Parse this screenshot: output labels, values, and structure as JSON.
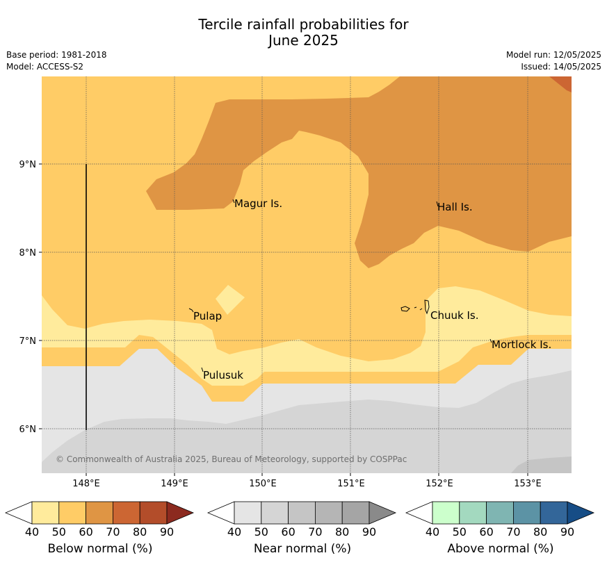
{
  "title": {
    "line1": "Tercile rainfall probabilities for",
    "line2": "June 2025"
  },
  "meta": {
    "base_period": "Base period: 1981-2018",
    "model": "Model: ACCESS-S2",
    "model_run": "Model run: 12/05/2025",
    "issued": "Issued: 14/05/2025"
  },
  "map": {
    "x_ticks": [
      "148°E",
      "149°E",
      "150°E",
      "151°E",
      "152°E",
      "153°E"
    ],
    "y_ticks": [
      "9°N",
      "8°N",
      "7°N",
      "6°N"
    ],
    "places": [
      "Magur Is.",
      "Hall Is.",
      "Pulap",
      "Chuuk Is.",
      "Mortlock Is.",
      "Pulusuk"
    ],
    "copyright": "© Commonwealth of Australia 2025, Bureau of Meteorology, supported by COSPPac",
    "colors": {
      "below_40": "#ffeb9c",
      "below_50": "#ffcc66",
      "below_60": "#df9544",
      "below_70": "#cc6633",
      "near_40": "#e5e5e5",
      "near_50": "#d5d5d5",
      "near_60": "#c5c5c5"
    }
  },
  "colorbars": [
    {
      "label": "Below normal (%)",
      "ticks": [
        "40",
        "50",
        "60",
        "70",
        "80",
        "90"
      ],
      "colors": [
        "#ffeb9c",
        "#ffcc66",
        "#df9544",
        "#cc6633",
        "#b34d2a",
        "#8c2a1f"
      ]
    },
    {
      "label": "Near normal (%)",
      "ticks": [
        "40",
        "50",
        "60",
        "70",
        "80",
        "90"
      ],
      "colors": [
        "#e5e5e5",
        "#d5d5d5",
        "#c5c5c5",
        "#b5b5b5",
        "#a5a5a5",
        "#8a8a8a"
      ]
    },
    {
      "label": "Above normal (%)",
      "ticks": [
        "40",
        "50",
        "60",
        "70",
        "80",
        "90"
      ],
      "colors": [
        "#ccffcc",
        "#a3d9bf",
        "#7fb5b2",
        "#5c93a5",
        "#336699",
        "#164d86"
      ]
    }
  ]
}
